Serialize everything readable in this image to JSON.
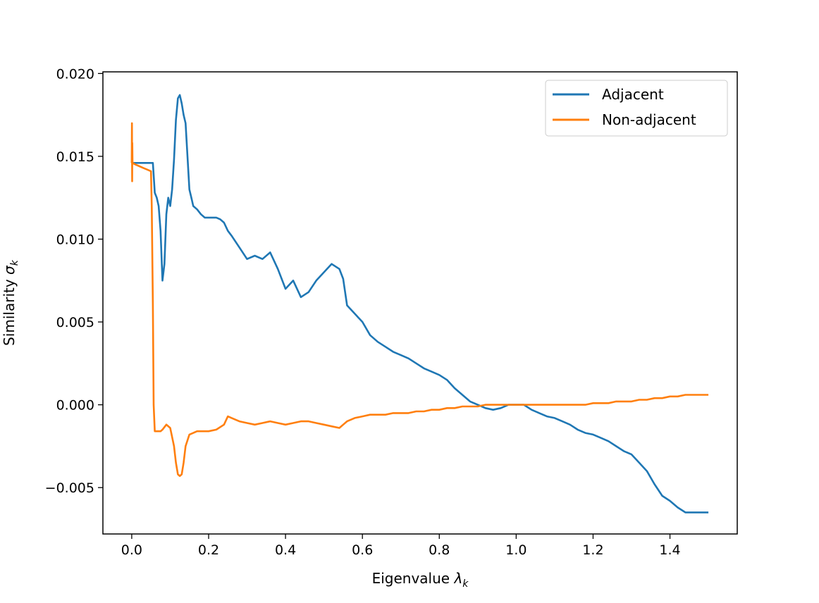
{
  "chart_data": {
    "type": "line",
    "title": "",
    "xlabel": "Eigenvalue λk",
    "xlabel_main": "Eigenvalue ",
    "xlabel_symbol": "λ",
    "xlabel_sub": "k",
    "ylabel": "Similarity σk",
    "ylabel_main": "Similarity ",
    "ylabel_symbol": "σ",
    "ylabel_sub": "k",
    "xlim": [
      -0.075,
      1.575
    ],
    "ylim": [
      -0.0078,
      0.0201
    ],
    "xticks": [
      0.0,
      0.2,
      0.4,
      0.6,
      0.8,
      1.0,
      1.2,
      1.4
    ],
    "xtick_labels": [
      "0.0",
      "0.2",
      "0.4",
      "0.6",
      "0.8",
      "1.0",
      "1.2",
      "1.4"
    ],
    "yticks": [
      -0.005,
      0.0,
      0.005,
      0.01,
      0.015,
      0.02
    ],
    "ytick_labels": [
      "−0.005",
      "0.000",
      "0.005",
      "0.010",
      "0.015",
      "0.020"
    ],
    "grid": false,
    "legend": "top-right",
    "series": [
      {
        "name": "Adjacent",
        "color": "#1f77b4",
        "x": [
          0.0,
          0.01,
          0.02,
          0.03,
          0.04,
          0.05,
          0.055,
          0.06,
          0.065,
          0.07,
          0.075,
          0.08,
          0.085,
          0.09,
          0.095,
          0.1,
          0.105,
          0.11,
          0.115,
          0.12,
          0.125,
          0.13,
          0.135,
          0.14,
          0.145,
          0.15,
          0.155,
          0.16,
          0.17,
          0.18,
          0.19,
          0.2,
          0.21,
          0.22,
          0.23,
          0.24,
          0.25,
          0.26,
          0.28,
          0.3,
          0.32,
          0.34,
          0.36,
          0.38,
          0.4,
          0.42,
          0.44,
          0.46,
          0.48,
          0.5,
          0.52,
          0.54,
          0.55,
          0.56,
          0.58,
          0.6,
          0.62,
          0.64,
          0.66,
          0.68,
          0.7,
          0.72,
          0.74,
          0.76,
          0.78,
          0.8,
          0.82,
          0.84,
          0.86,
          0.88,
          0.9,
          0.92,
          0.94,
          0.96,
          0.98,
          1.0,
          1.02,
          1.04,
          1.06,
          1.08,
          1.1,
          1.12,
          1.14,
          1.16,
          1.18,
          1.2,
          1.22,
          1.24,
          1.26,
          1.28,
          1.3,
          1.32,
          1.34,
          1.36,
          1.38,
          1.4,
          1.42,
          1.44,
          1.46,
          1.48,
          1.5
        ],
        "y": [
          0.0146,
          0.0146,
          0.0146,
          0.0146,
          0.0146,
          0.0146,
          0.0146,
          0.0128,
          0.0125,
          0.012,
          0.0105,
          0.0075,
          0.0085,
          0.0115,
          0.0125,
          0.012,
          0.013,
          0.0148,
          0.0172,
          0.0185,
          0.0187,
          0.0182,
          0.0175,
          0.017,
          0.015,
          0.013,
          0.0125,
          0.012,
          0.0118,
          0.0115,
          0.0113,
          0.0113,
          0.0113,
          0.0113,
          0.0112,
          0.011,
          0.0105,
          0.0102,
          0.0095,
          0.0088,
          0.009,
          0.0088,
          0.0092,
          0.0082,
          0.007,
          0.0075,
          0.0065,
          0.0068,
          0.0075,
          0.008,
          0.0085,
          0.0082,
          0.0076,
          0.006,
          0.0055,
          0.005,
          0.0042,
          0.0038,
          0.0035,
          0.0032,
          0.003,
          0.0028,
          0.0025,
          0.0022,
          0.002,
          0.0018,
          0.0015,
          0.001,
          0.0006,
          0.0002,
          0.0,
          -0.0002,
          -0.0003,
          -0.0002,
          0.0,
          0.0,
          0.0,
          -0.0003,
          -0.0005,
          -0.0007,
          -0.0008,
          -0.001,
          -0.0012,
          -0.0015,
          -0.0017,
          -0.0018,
          -0.002,
          -0.0022,
          -0.0025,
          -0.0028,
          -0.003,
          -0.0035,
          -0.004,
          -0.0048,
          -0.0055,
          -0.0058,
          -0.0062,
          -0.0065,
          -0.0065,
          -0.0065,
          -0.0065
        ]
      },
      {
        "name": "Non-adjacent",
        "color": "#ff7f0e",
        "x": [
          0.0,
          0.0005,
          0.001,
          0.0015,
          0.002,
          0.01,
          0.02,
          0.03,
          0.04,
          0.05,
          0.052,
          0.055,
          0.057,
          0.06,
          0.065,
          0.07,
          0.075,
          0.08,
          0.09,
          0.1,
          0.11,
          0.115,
          0.12,
          0.125,
          0.13,
          0.135,
          0.14,
          0.15,
          0.16,
          0.17,
          0.18,
          0.2,
          0.22,
          0.24,
          0.25,
          0.26,
          0.28,
          0.3,
          0.32,
          0.34,
          0.36,
          0.38,
          0.4,
          0.42,
          0.44,
          0.46,
          0.48,
          0.5,
          0.52,
          0.54,
          0.55,
          0.56,
          0.58,
          0.6,
          0.62,
          0.64,
          0.66,
          0.68,
          0.7,
          0.72,
          0.74,
          0.76,
          0.78,
          0.8,
          0.82,
          0.84,
          0.86,
          0.88,
          0.9,
          0.92,
          0.94,
          0.96,
          0.98,
          1.0,
          1.02,
          1.04,
          1.06,
          1.08,
          1.1,
          1.12,
          1.14,
          1.16,
          1.18,
          1.2,
          1.22,
          1.24,
          1.26,
          1.28,
          1.3,
          1.32,
          1.34,
          1.36,
          1.38,
          1.4,
          1.42,
          1.44,
          1.46,
          1.48,
          1.5
        ],
        "y": [
          0.0146,
          0.017,
          0.0135,
          0.0158,
          0.0146,
          0.0145,
          0.0144,
          0.0143,
          0.0142,
          0.0141,
          0.012,
          0.006,
          0.0,
          -0.0016,
          -0.0016,
          -0.0016,
          -0.0016,
          -0.0015,
          -0.0012,
          -0.0014,
          -0.0025,
          -0.0035,
          -0.0042,
          -0.0043,
          -0.0042,
          -0.0035,
          -0.0025,
          -0.0018,
          -0.0017,
          -0.0016,
          -0.0016,
          -0.0016,
          -0.0015,
          -0.0012,
          -0.0007,
          -0.0008,
          -0.001,
          -0.0011,
          -0.0012,
          -0.0011,
          -0.001,
          -0.0011,
          -0.0012,
          -0.0011,
          -0.001,
          -0.001,
          -0.0011,
          -0.0012,
          -0.0013,
          -0.0014,
          -0.0012,
          -0.001,
          -0.0008,
          -0.0007,
          -0.0006,
          -0.0006,
          -0.0006,
          -0.0005,
          -0.0005,
          -0.0005,
          -0.0004,
          -0.0004,
          -0.0003,
          -0.0003,
          -0.0002,
          -0.0002,
          -0.0001,
          -0.0001,
          -0.0001,
          0.0,
          0.0,
          0.0,
          0.0,
          0.0,
          0.0,
          0.0,
          0.0,
          0.0,
          0.0,
          0.0,
          0.0,
          0.0,
          0.0,
          0.0001,
          0.0001,
          0.0001,
          0.0002,
          0.0002,
          0.0002,
          0.0003,
          0.0003,
          0.0004,
          0.0004,
          0.0005,
          0.0005,
          0.0006,
          0.0006,
          0.0006,
          0.0006
        ]
      }
    ]
  }
}
